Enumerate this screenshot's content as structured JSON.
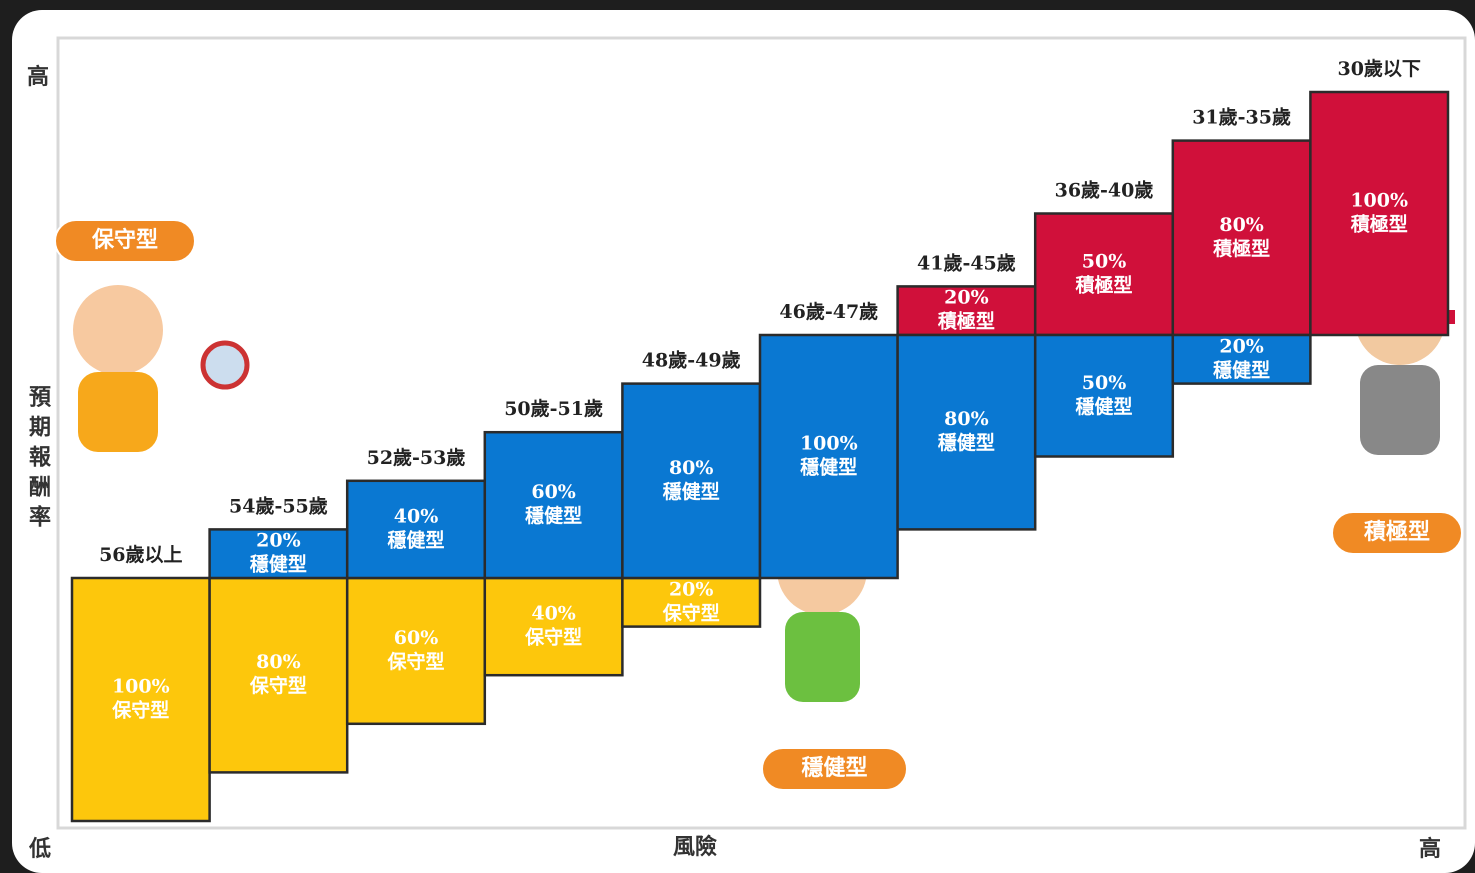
{
  "chart_data": {
    "type": "staircase-stacked-bar",
    "y_high_label": "高",
    "y_label": "預期報酬率",
    "origin_label": "低",
    "x_label": "風險",
    "x_high_label": "高",
    "categories": [
      "56歲以上",
      "54歲-55歲",
      "52歲-53歲",
      "50歲-51歲",
      "48歲-49歲",
      "46歲-47歲",
      "41歲-45歲",
      "36歲-40歲",
      "31歲-35歲",
      "30歲以下"
    ],
    "series": [
      {
        "name": "保守型",
        "color": "#fdc70c",
        "values": [
          100,
          80,
          60,
          40,
          20,
          null,
          null,
          null,
          null,
          null
        ],
        "value_labels": [
          "100%",
          "80%",
          "60%",
          "40%",
          "20%",
          null,
          null,
          null,
          null,
          null
        ]
      },
      {
        "name": "穩健型",
        "color": "#0a78d2",
        "values": [
          null,
          20,
          40,
          60,
          80,
          100,
          80,
          50,
          20,
          null
        ],
        "value_labels": [
          null,
          "20%",
          "40%",
          "60%",
          "80%",
          "100%",
          "80%",
          "50%",
          "20%",
          null
        ]
      },
      {
        "name": "積極型",
        "color": "#d0103a",
        "values": [
          null,
          null,
          null,
          null,
          null,
          null,
          20,
          50,
          80,
          100
        ],
        "value_labels": [
          null,
          null,
          null,
          null,
          null,
          null,
          "20%",
          "50%",
          "80%",
          "100%"
        ]
      }
    ]
  }
}
